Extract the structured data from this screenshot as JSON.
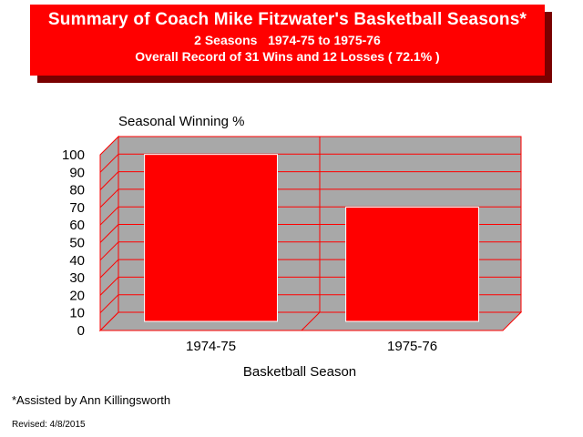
{
  "banner": {
    "title": "Summary of Coach Mike Fitzwater's Basketball Seasons*",
    "subtitle": "2 Seasons   1974-75 to 1975-76",
    "record": "Overall Record of 31 Wins and 12 Losses ( 72.1% )"
  },
  "chart_data": {
    "type": "bar",
    "title": "Seasonal Winning %",
    "xlabel": "Basketball Season",
    "ylabel": "",
    "categories": [
      "1974-75",
      "1975-76"
    ],
    "values": [
      95,
      65
    ],
    "ylim": [
      0,
      100
    ],
    "yticks": [
      "0",
      "10",
      "20",
      "30",
      "40",
      "50",
      "60",
      "70",
      "80",
      "90",
      "100"
    ],
    "grid": true,
    "colors": {
      "bar": "#ff0000",
      "wall": "#a8a8a8",
      "grid": "#ff0000",
      "banner": "#ff0000",
      "banner_shadow": "#7a0000"
    }
  },
  "footnote": "*Assisted by Ann Killingsworth",
  "revised": "Revised: 4/8/2015"
}
